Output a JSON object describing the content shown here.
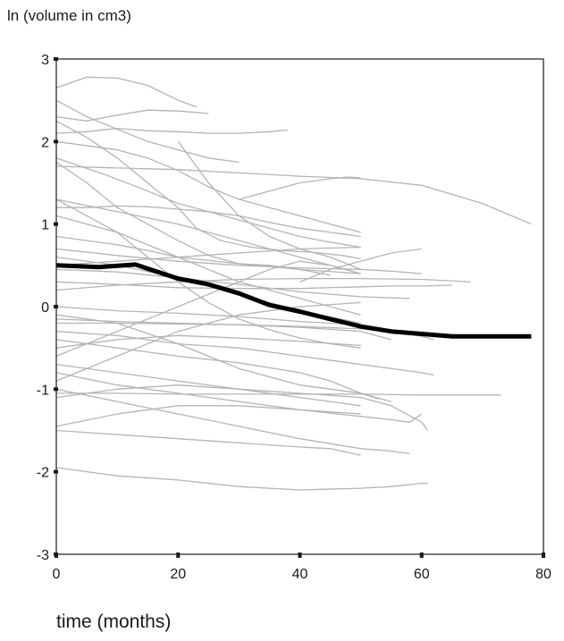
{
  "chart_data": {
    "type": "line",
    "xlabel": "time (months)",
    "ylabel": "ln (volume in cm3)",
    "xlim": [
      0,
      80
    ],
    "ylim": [
      -3,
      3
    ],
    "xticks": [
      "0",
      "20",
      "40",
      "60",
      "80"
    ],
    "yticks": [
      "3",
      "2",
      "1",
      "0",
      "-1",
      "-2",
      "-3"
    ],
    "grid": false,
    "legend": "none",
    "mean_color": "#000000",
    "individual_color": "#b4b4b4",
    "mean_curve": {
      "x": [
        0,
        7,
        13,
        15,
        20,
        25,
        30,
        35,
        40,
        45,
        50,
        55,
        60,
        65,
        70,
        75,
        78
      ],
      "y": [
        0.5,
        0.48,
        0.51,
        0.46,
        0.34,
        0.27,
        0.16,
        0.02,
        -0.06,
        -0.15,
        -0.24,
        -0.3,
        -0.33,
        -0.36,
        -0.36,
        -0.36,
        -0.36
      ]
    },
    "individual_curves": [
      {
        "x": [
          0,
          5,
          10,
          15,
          20,
          23
        ],
        "y": [
          2.65,
          2.78,
          2.77,
          2.68,
          2.5,
          2.42
        ]
      },
      {
        "x": [
          0,
          5,
          10,
          15,
          20,
          25
        ],
        "y": [
          2.3,
          2.25,
          2.32,
          2.38,
          2.37,
          2.34
        ]
      },
      {
        "x": [
          0,
          5,
          10,
          15,
          20,
          25,
          30,
          35,
          38
        ],
        "y": [
          2.1,
          2.12,
          2.16,
          2.13,
          2.12,
          2.1,
          2.1,
          2.12,
          2.14
        ]
      },
      {
        "x": [
          0,
          5,
          10,
          15,
          20,
          25,
          30
        ],
        "y": [
          2.5,
          2.3,
          2.15,
          2.0,
          1.9,
          1.8,
          1.75
        ]
      },
      {
        "x": [
          0,
          10,
          20,
          30,
          40,
          50,
          60,
          70,
          78
        ],
        "y": [
          1.7,
          1.68,
          1.66,
          1.62,
          1.58,
          1.55,
          1.47,
          1.25,
          1.0
        ]
      },
      {
        "x": [
          0,
          5,
          10,
          15,
          20,
          23,
          27,
          32,
          37,
          42,
          47,
          50
        ],
        "y": [
          2.25,
          2.05,
          1.8,
          1.5,
          1.2,
          0.95,
          0.8,
          0.72,
          0.68,
          0.66,
          0.62,
          0.58
        ]
      },
      {
        "x": [
          0,
          8,
          15,
          20,
          25,
          30,
          35,
          40,
          45,
          50
        ],
        "y": [
          1.8,
          1.6,
          1.4,
          1.25,
          1.15,
          1.05,
          0.95,
          0.85,
          0.78,
          0.72
        ]
      },
      {
        "x": [
          0,
          5,
          10,
          15,
          20,
          25,
          30,
          35,
          40,
          45
        ],
        "y": [
          1.75,
          1.5,
          1.2,
          1.0,
          0.8,
          0.62,
          0.52,
          0.5,
          0.45,
          0.38
        ]
      },
      {
        "x": [
          0,
          5,
          10,
          15,
          20,
          25,
          30,
          35,
          40,
          45,
          50
        ],
        "y": [
          1.2,
          1.2,
          1.22,
          1.21,
          1.18,
          1.15,
          1.1,
          1.02,
          0.95,
          0.9,
          0.85
        ]
      },
      {
        "x": [
          0,
          10,
          20,
          30,
          40,
          50
        ],
        "y": [
          0.5,
          0.55,
          0.6,
          0.65,
          0.7,
          0.72
        ]
      },
      {
        "x": [
          0,
          10,
          20,
          30,
          40,
          50,
          60,
          68
        ],
        "y": [
          0.2,
          0.26,
          0.3,
          0.33,
          0.34,
          0.34,
          0.33,
          0.3
        ]
      },
      {
        "x": [
          0,
          10,
          20,
          30,
          40,
          50,
          58
        ],
        "y": [
          0.45,
          0.42,
          0.35,
          0.27,
          0.18,
          0.12,
          0.1
        ]
      },
      {
        "x": [
          0,
          10,
          20,
          30,
          40,
          50
        ],
        "y": [
          0.0,
          -0.05,
          -0.08,
          -0.12,
          -0.18,
          -0.22
        ]
      },
      {
        "x": [
          0,
          10,
          20,
          30,
          40,
          50,
          55
        ],
        "y": [
          -0.15,
          -0.18,
          -0.2,
          -0.22,
          -0.25,
          -0.3,
          -0.4
        ]
      },
      {
        "x": [
          0,
          5,
          10,
          15,
          20,
          25,
          30,
          35,
          40,
          45,
          50
        ],
        "y": [
          1.3,
          1.1,
          0.9,
          0.6,
          0.3,
          0.05,
          -0.15,
          -0.28,
          -0.38,
          -0.45,
          -0.5
        ]
      },
      {
        "x": [
          0,
          10,
          20,
          30,
          40,
          45,
          50,
          53
        ],
        "y": [
          -0.4,
          -0.5,
          -0.6,
          -0.68,
          -0.8,
          -0.9,
          -1.05,
          -1.12
        ]
      },
      {
        "x": [
          0,
          10,
          20,
          30,
          40,
          50,
          60,
          62
        ],
        "y": [
          -0.3,
          -0.35,
          -0.45,
          -0.5,
          -0.6,
          -0.7,
          -0.8,
          -0.83
        ]
      },
      {
        "x": [
          0,
          10,
          20,
          30,
          40,
          50,
          60,
          70,
          73
        ],
        "y": [
          -1.05,
          -1.05,
          -1.06,
          -1.06,
          -1.06,
          -1.06,
          -1.07,
          -1.07,
          -1.07
        ]
      },
      {
        "x": [
          0,
          10,
          20,
          30,
          40,
          50
        ],
        "y": [
          -0.7,
          -0.8,
          -0.9,
          -1.0,
          -1.1,
          -1.2
        ]
      },
      {
        "x": [
          0,
          10,
          20,
          30,
          40,
          50,
          55,
          60,
          61
        ],
        "y": [
          -1.1,
          -1.0,
          -0.95,
          -1.0,
          -1.05,
          -1.1,
          -1.2,
          -1.4,
          -1.5
        ]
      },
      {
        "x": [
          0,
          10,
          20,
          30,
          40,
          50
        ],
        "y": [
          -1.45,
          -1.3,
          -1.2,
          -1.2,
          -1.25,
          -1.3
        ]
      },
      {
        "x": [
          0,
          10,
          20,
          30,
          40,
          45,
          50
        ],
        "y": [
          -1.5,
          -1.55,
          -1.6,
          -1.65,
          -1.7,
          -1.72,
          -1.8
        ]
      },
      {
        "x": [
          0,
          10,
          20,
          30,
          40,
          50,
          55,
          60,
          61
        ],
        "y": [
          -1.95,
          -2.05,
          -2.1,
          -2.18,
          -2.22,
          -2.2,
          -2.18,
          -2.14,
          -2.14
        ]
      },
      {
        "x": [
          0,
          10,
          20,
          30,
          40,
          50,
          55,
          60,
          62
        ],
        "y": [
          -0.2,
          -0.2,
          -0.21,
          -0.22,
          -0.24,
          -0.27,
          -0.3,
          -0.36,
          -0.4
        ]
      },
      {
        "x": [
          0,
          10,
          20,
          30,
          40,
          50,
          55,
          60
        ],
        "y": [
          0.7,
          0.62,
          0.55,
          0.5,
          0.47,
          0.45,
          0.43,
          0.4
        ]
      },
      {
        "x": [
          0,
          10,
          20,
          30,
          40,
          50,
          55,
          60,
          65
        ],
        "y": [
          0.3,
          0.27,
          0.23,
          0.22,
          0.22,
          0.24,
          0.25,
          0.25,
          0.26
        ]
      },
      {
        "x": [
          0,
          10,
          20,
          30,
          40,
          50
        ],
        "y": [
          -0.5,
          -0.4,
          -0.35,
          -0.38,
          -0.42,
          -0.47
        ]
      },
      {
        "x": [
          0,
          10,
          20,
          30,
          40,
          50
        ],
        "y": [
          1.1,
          0.9,
          0.6,
          0.3,
          0.1,
          -0.1
        ]
      },
      {
        "x": [
          0,
          10,
          20,
          30,
          40,
          50
        ],
        "y": [
          -0.9,
          -0.6,
          -0.3,
          -0.1,
          0.0,
          0.05
        ]
      },
      {
        "x": [
          0,
          10,
          20,
          25,
          30,
          35,
          40,
          45,
          50
        ],
        "y": [
          -0.6,
          -0.3,
          0.0,
          0.15,
          0.3,
          0.45,
          0.55,
          0.5,
          0.4
        ]
      },
      {
        "x": [
          0,
          10,
          15,
          20,
          25,
          30,
          35,
          40,
          45,
          50
        ],
        "y": [
          2.0,
          1.9,
          1.8,
          1.65,
          1.45,
          1.3,
          1.2,
          1.1,
          1.0,
          0.9
        ]
      },
      {
        "x": [
          20,
          25,
          30,
          35,
          40,
          45,
          50
        ],
        "y": [
          2.0,
          1.5,
          1.1,
          0.85,
          0.7,
          0.6,
          0.45
        ]
      },
      {
        "x": [
          0,
          10,
          20,
          30,
          35,
          40,
          45,
          50
        ],
        "y": [
          1.3,
          1.15,
          1.0,
          0.8,
          0.7,
          0.6,
          0.5,
          0.4
        ]
      },
      {
        "x": [
          0,
          10,
          20,
          30,
          40,
          50
        ],
        "y": [
          0.6,
          0.5,
          0.35,
          0.15,
          -0.05,
          -0.2
        ]
      },
      {
        "x": [
          30,
          35,
          40,
          45,
          48,
          50
        ],
        "y": [
          1.3,
          1.4,
          1.5,
          1.55,
          1.57,
          1.56
        ]
      },
      {
        "x": [
          0,
          10,
          20,
          30,
          40,
          45,
          50,
          55
        ],
        "y": [
          -0.1,
          -0.2,
          -0.45,
          -0.75,
          -0.95,
          -1.0,
          -1.05,
          -1.15
        ]
      },
      {
        "x": [
          0,
          10,
          20,
          30,
          40,
          50,
          55,
          58
        ],
        "y": [
          -1.0,
          -1.15,
          -1.3,
          -1.45,
          -1.6,
          -1.72,
          -1.75,
          -1.78
        ]
      },
      {
        "x": [
          0,
          10,
          20,
          30,
          40,
          50,
          55,
          58,
          60
        ],
        "y": [
          -0.8,
          -0.95,
          -1.05,
          -1.15,
          -1.25,
          -1.33,
          -1.37,
          -1.4,
          -1.3
        ]
      },
      {
        "x": [
          40,
          45,
          50,
          55,
          60
        ],
        "y": [
          0.3,
          0.45,
          0.55,
          0.65,
          0.7
        ]
      },
      {
        "x": [
          0,
          5,
          10,
          15,
          20,
          30,
          40,
          50
        ],
        "y": [
          0.85,
          0.8,
          0.75,
          0.68,
          0.6,
          0.52,
          0.45,
          0.4
        ]
      }
    ]
  }
}
